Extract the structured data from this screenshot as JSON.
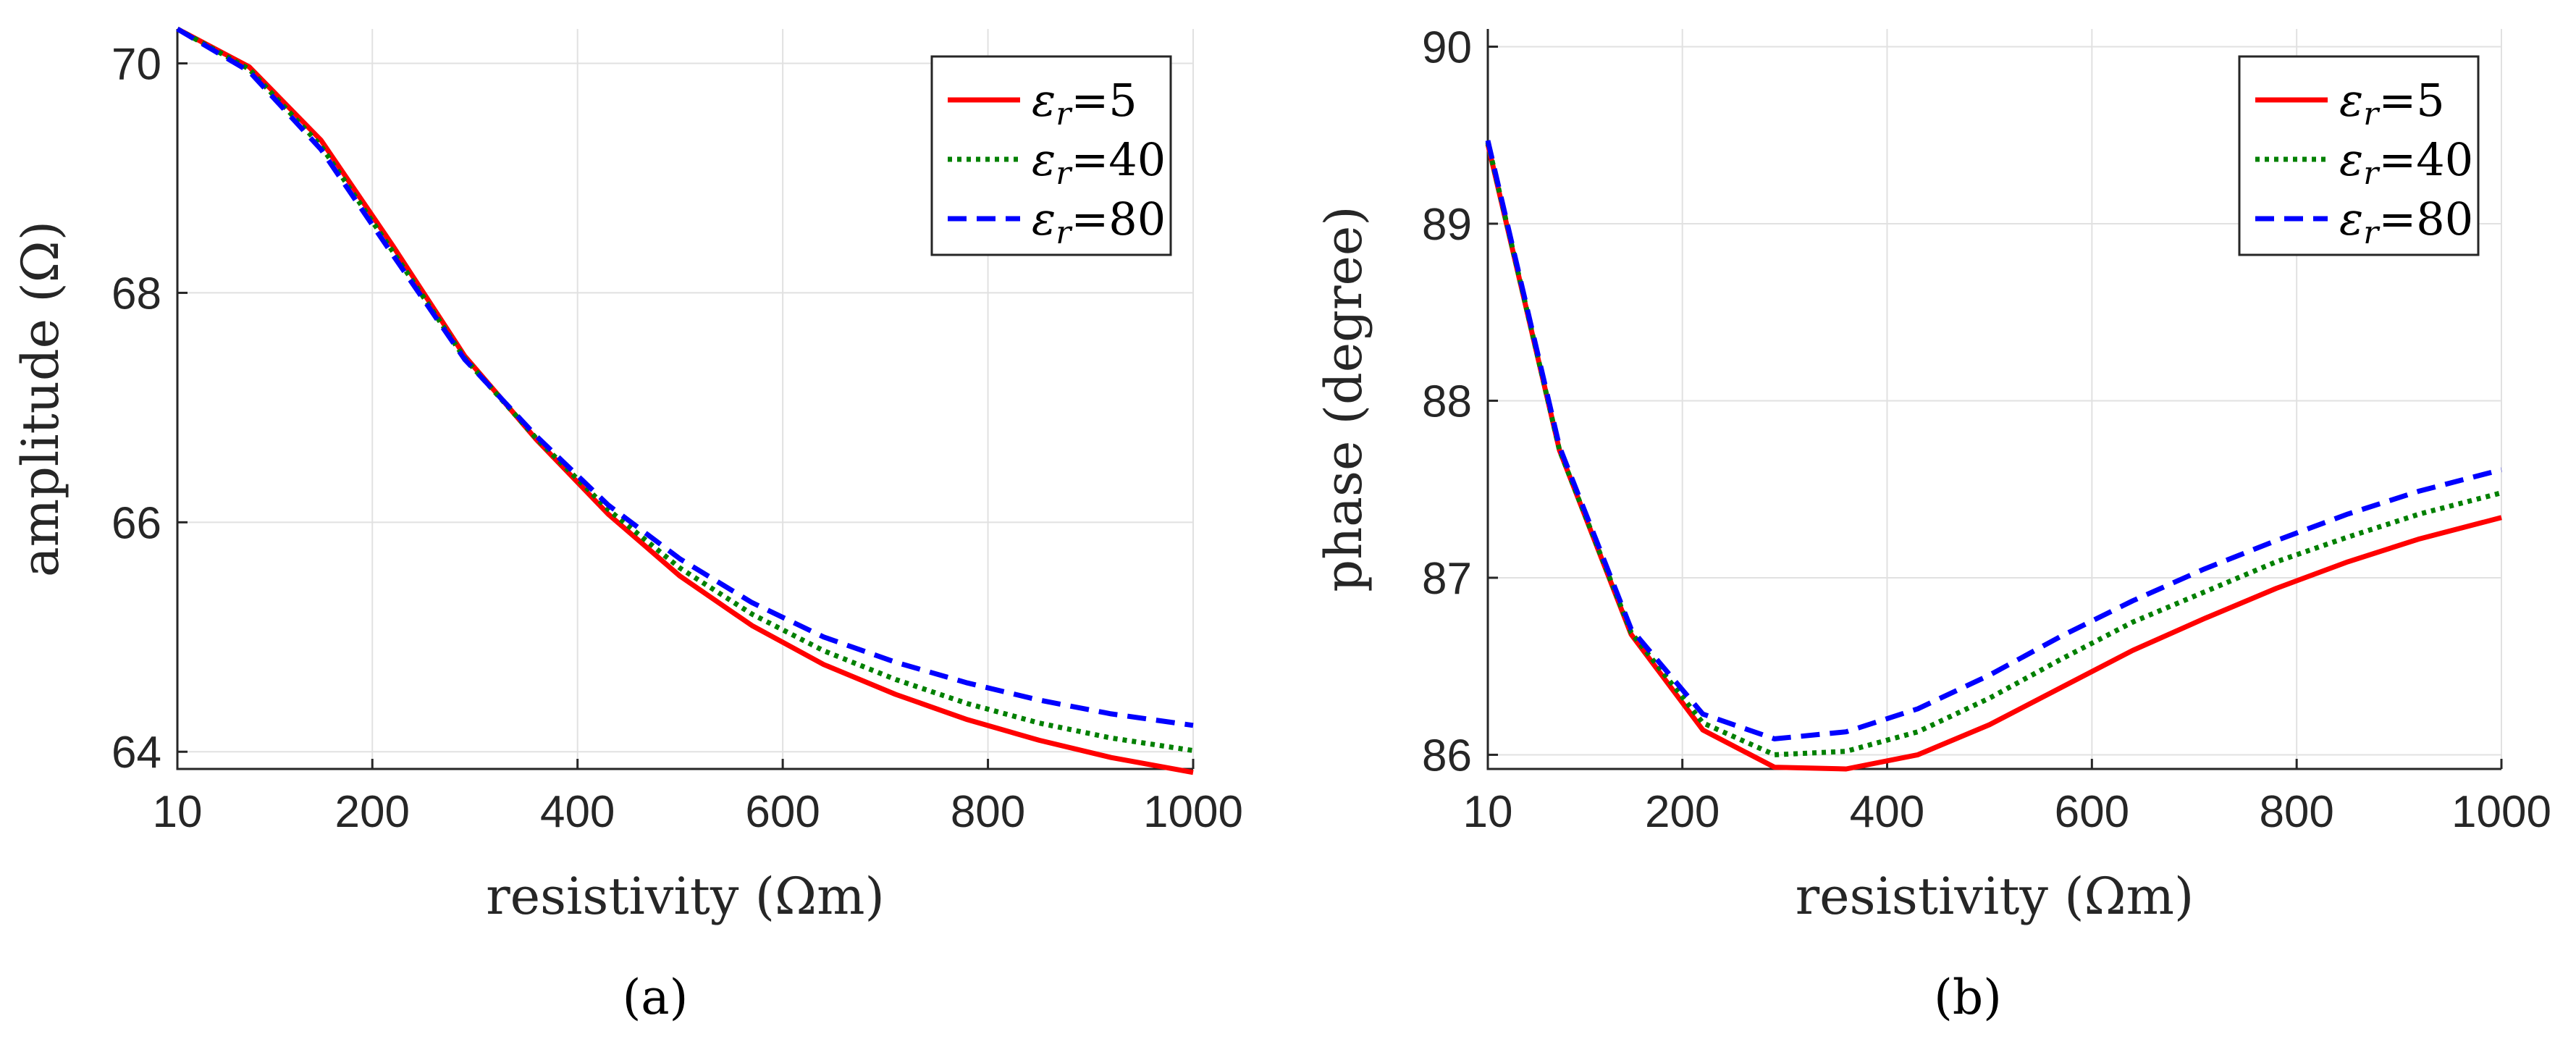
{
  "chart_data": [
    {
      "type": "line",
      "panel_label": "(a)",
      "xlabel": "resistivity (Ωm)",
      "ylabel": "amplitude (Ω)",
      "xlim": [
        10,
        1000
      ],
      "ylim": [
        63.85,
        70.3
      ],
      "xticks": [
        10,
        200,
        400,
        600,
        800,
        1000
      ],
      "xtick_labels": [
        "10",
        "200",
        "400",
        "600",
        "800",
        "1000"
      ],
      "yticks": [
        64,
        66,
        68,
        70
      ],
      "ytick_labels": [
        "64",
        "66",
        "68",
        "70"
      ],
      "grid": true,
      "legend_position": "top-right",
      "x": [
        10,
        80,
        150,
        220,
        290,
        360,
        430,
        500,
        570,
        640,
        710,
        780,
        850,
        920,
        1000
      ],
      "series": [
        {
          "name": "εr=5",
          "legend_symbol": "ε",
          "legend_sub": "r",
          "legend_value": "=5",
          "color": "#ff0000",
          "style": "solid",
          "values": [
            70.3,
            69.97,
            69.33,
            68.41,
            67.45,
            66.72,
            66.07,
            65.53,
            65.1,
            64.76,
            64.5,
            64.28,
            64.1,
            63.95,
            63.82
          ]
        },
        {
          "name": "εr=40",
          "legend_symbol": "ε",
          "legend_sub": "r",
          "legend_value": "=40",
          "color": "#008000",
          "style": "dotted",
          "values": [
            70.3,
            69.95,
            69.28,
            68.36,
            67.43,
            66.73,
            66.11,
            65.6,
            65.2,
            64.88,
            64.63,
            64.42,
            64.25,
            64.12,
            64.01
          ]
        },
        {
          "name": "εr=80",
          "legend_symbol": "ε",
          "legend_sub": "r",
          "legend_value": "=80",
          "color": "#0000ff",
          "style": "dashed",
          "values": [
            70.3,
            69.93,
            69.25,
            68.33,
            67.42,
            66.75,
            66.15,
            65.68,
            65.3,
            65.0,
            64.78,
            64.6,
            64.45,
            64.33,
            64.23
          ]
        }
      ]
    },
    {
      "type": "line",
      "panel_label": "(b)",
      "xlabel": "resistivity (Ωm)",
      "ylabel": "phase (degree)",
      "xlim": [
        10,
        1000
      ],
      "ylim": [
        85.92,
        90.1
      ],
      "xticks": [
        10,
        200,
        400,
        600,
        800,
        1000
      ],
      "xtick_labels": [
        "10",
        "200",
        "400",
        "600",
        "800",
        "1000"
      ],
      "yticks": [
        86,
        87,
        88,
        89,
        90
      ],
      "ytick_labels": [
        "86",
        "87",
        "88",
        "89",
        "90"
      ],
      "grid": true,
      "legend_position": "top-right",
      "x": [
        10,
        80,
        150,
        220,
        290,
        360,
        430,
        500,
        570,
        640,
        710,
        780,
        850,
        920,
        1000
      ],
      "series": [
        {
          "name": "εr=5",
          "legend_symbol": "ε",
          "legend_sub": "r",
          "legend_value": "=5",
          "color": "#ff0000",
          "style": "solid",
          "values": [
            89.45,
            87.72,
            86.68,
            86.14,
            85.93,
            85.92,
            86.0,
            86.17,
            86.38,
            86.59,
            86.77,
            86.94,
            87.09,
            87.22,
            87.34
          ]
        },
        {
          "name": "εr=40",
          "legend_symbol": "ε",
          "legend_sub": "r",
          "legend_value": "=40",
          "color": "#008000",
          "style": "dotted",
          "values": [
            89.46,
            87.72,
            86.69,
            86.18,
            86.0,
            86.02,
            86.13,
            86.32,
            86.54,
            86.75,
            86.92,
            87.09,
            87.23,
            87.36,
            87.48
          ]
        },
        {
          "name": "εr=80",
          "legend_symbol": "ε",
          "legend_sub": "r",
          "legend_value": "=80",
          "color": "#0000ff",
          "style": "dashed",
          "values": [
            89.47,
            87.74,
            86.71,
            86.23,
            86.09,
            86.13,
            86.26,
            86.45,
            86.67,
            86.87,
            87.05,
            87.21,
            87.36,
            87.49,
            87.61
          ]
        }
      ]
    }
  ]
}
